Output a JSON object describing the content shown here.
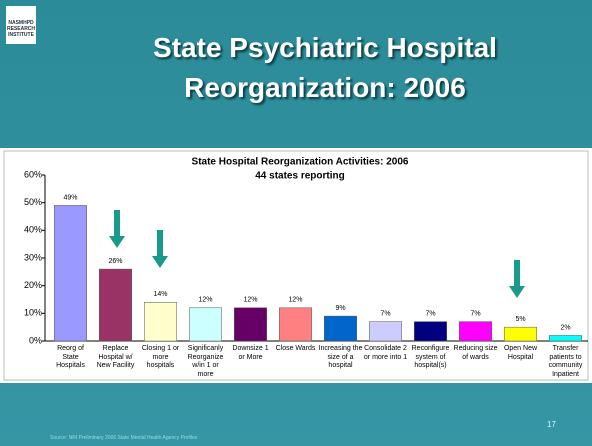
{
  "logo": "NASMHPD RESEARCH INSTITUTE",
  "title": "State Psychiatric Hospital Reorganization: 2006",
  "source": "Source: NRI Preliminary 2006 State Mental Health Agency Profiles",
  "page_number": "17",
  "chart_data": {
    "type": "bar",
    "title": "State Hospital Reorganization Activities: 2006",
    "subtitle": "44 states reporting",
    "categories": [
      "Reorg of State Hospitals",
      "Replace Hospital w/ New Facility",
      "Closing 1 or more hospitals",
      "Significanly Reorganize w/in 1 or more",
      "Downsize 1 or More",
      "Close Wards",
      "Increasing the size of a hospital",
      "Consolidate 2 or more into 1",
      "Reconfigure system of hospital(s)",
      "Reducing size of wards",
      "Open New Hospital",
      "Transfer patients to community Inpatient"
    ],
    "values": [
      49,
      26,
      14,
      12,
      12,
      12,
      9,
      7,
      7,
      7,
      5,
      2
    ],
    "value_labels": [
      "49%",
      "26%",
      "14%",
      "12%",
      "12%",
      "12%",
      "9%",
      "7%",
      "7%",
      "7%",
      "5%",
      "2%"
    ],
    "colors": [
      "#9999ff",
      "#993366",
      "#ffffcc",
      "#ccffff",
      "#660066",
      "#ff8080",
      "#0066cc",
      "#ccccff",
      "#000080",
      "#ff00ff",
      "#ffff00",
      "#00ffff"
    ],
    "ylim": [
      0,
      60
    ],
    "yticks": [
      {
        "value": 0,
        "label": "0%"
      },
      {
        "value": 10,
        "label": "10%"
      },
      {
        "value": 20,
        "label": "20%"
      },
      {
        "value": 30,
        "label": "30%"
      },
      {
        "value": 40,
        "label": "40%"
      },
      {
        "value": 50,
        "label": "50%"
      },
      {
        "value": 60,
        "label": "60%"
      }
    ],
    "grid": false
  }
}
